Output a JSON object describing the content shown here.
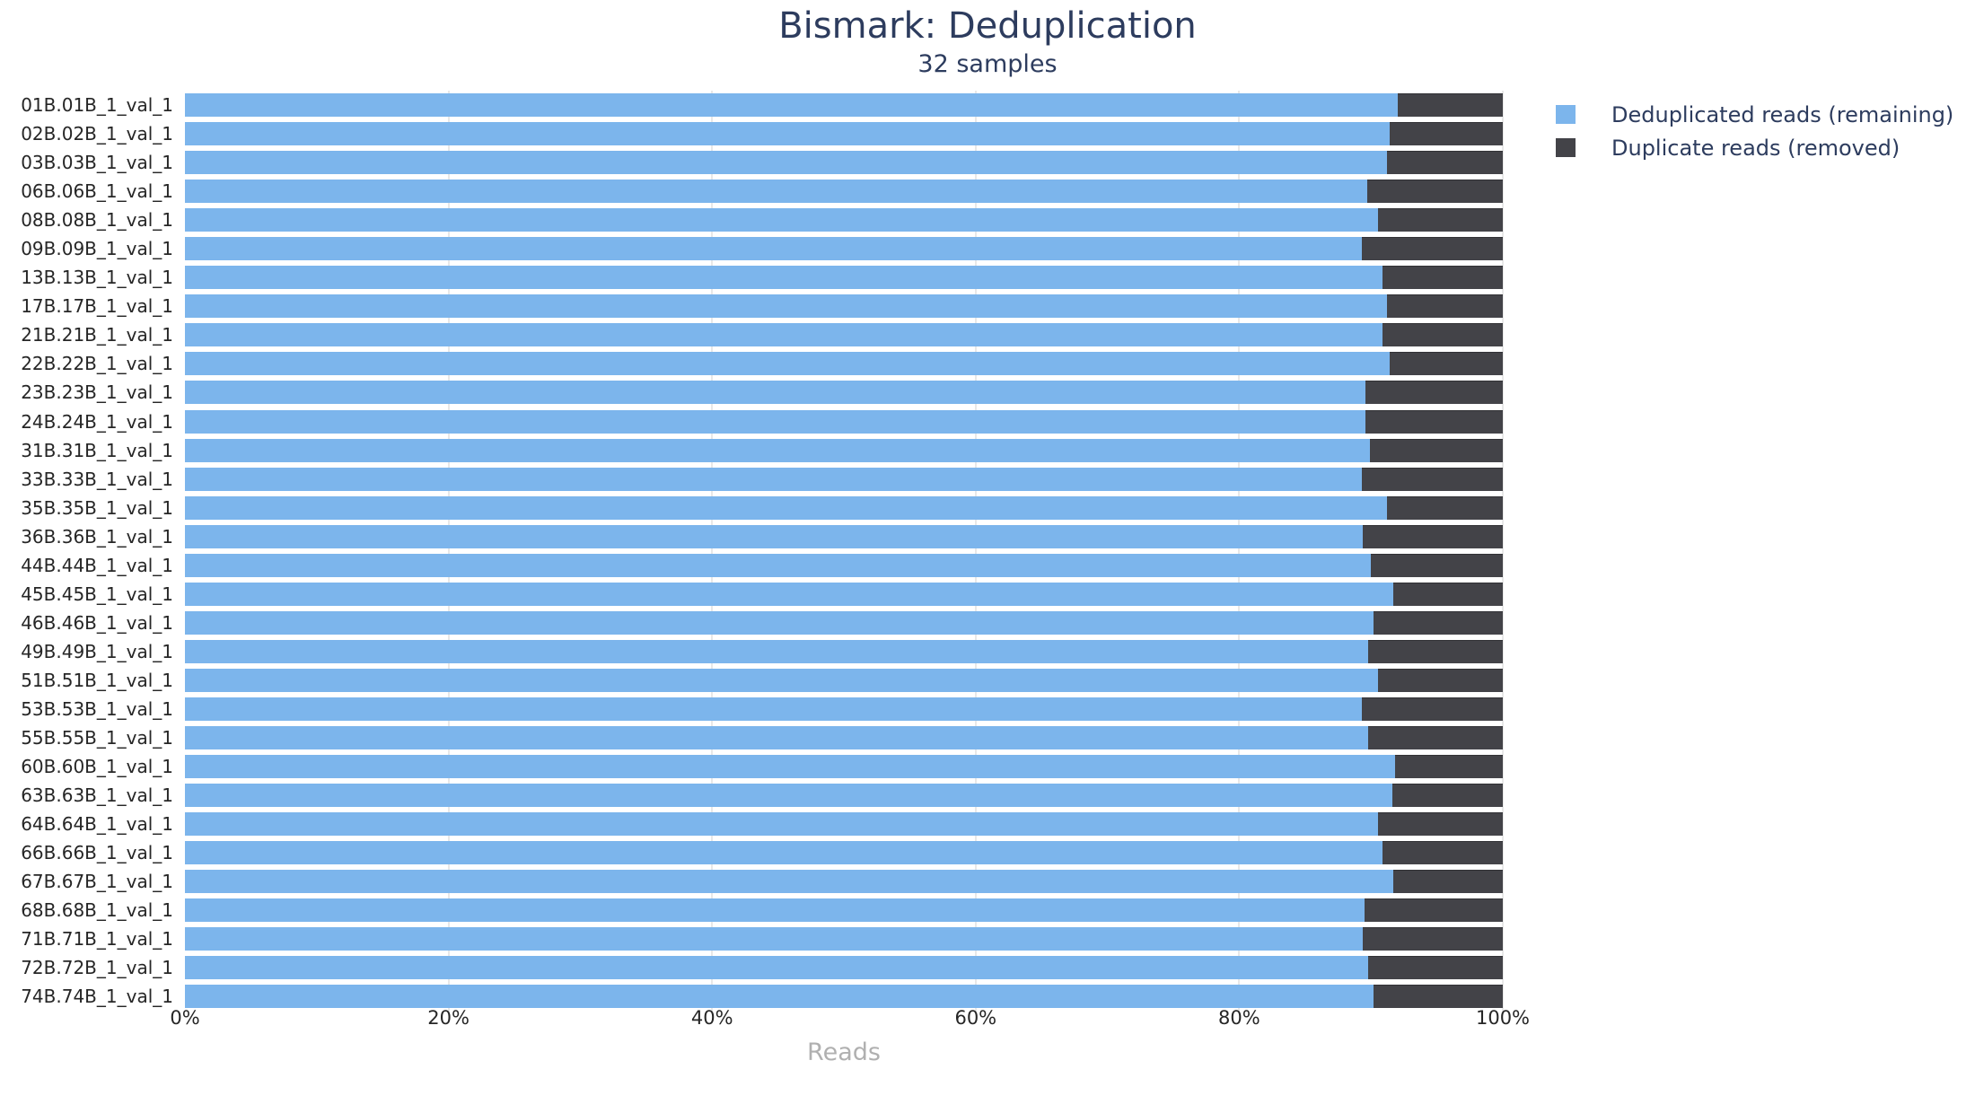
{
  "chart_data": {
    "type": "bar",
    "orientation": "horizontal",
    "stacked": true,
    "title": "Bismark: Deduplication",
    "subtitle": "32 samples",
    "xlabel": "Reads",
    "xlim": [
      0,
      100
    ],
    "x_ticks": [
      "0%",
      "20%",
      "40%",
      "60%",
      "80%",
      "100%"
    ],
    "x_tick_values": [
      0,
      20,
      40,
      60,
      80,
      100
    ],
    "grid": "vertical",
    "gridline_values": [
      20,
      40,
      60,
      80,
      100
    ],
    "legend_position": "right",
    "categories": [
      "01B.01B_1_val_1",
      "02B.02B_1_val_1",
      "03B.03B_1_val_1",
      "06B.06B_1_val_1",
      "08B.08B_1_val_1",
      "09B.09B_1_val_1",
      "13B.13B_1_val_1",
      "17B.17B_1_val_1",
      "21B.21B_1_val_1",
      "22B.22B_1_val_1",
      "23B.23B_1_val_1",
      "24B.24B_1_val_1",
      "31B.31B_1_val_1",
      "33B.33B_1_val_1",
      "35B.35B_1_val_1",
      "36B.36B_1_val_1",
      "44B.44B_1_val_1",
      "45B.45B_1_val_1",
      "46B.46B_1_val_1",
      "49B.49B_1_val_1",
      "51B.51B_1_val_1",
      "53B.53B_1_val_1",
      "55B.55B_1_val_1",
      "60B.60B_1_val_1",
      "63B.63B_1_val_1",
      "64B.64B_1_val_1",
      "66B.66B_1_val_1",
      "67B.67B_1_val_1",
      "68B.68B_1_val_1",
      "71B.71B_1_val_1",
      "72B.72B_1_val_1",
      "74B.74B_1_val_1"
    ],
    "series": [
      {
        "name": "Deduplicated reads (remaining)",
        "color": "#7cb5ec",
        "values": [
          92.0,
          91.4,
          91.2,
          89.7,
          90.5,
          89.3,
          90.9,
          91.2,
          90.9,
          91.4,
          89.6,
          89.6,
          89.9,
          89.3,
          91.2,
          89.4,
          90.0,
          91.7,
          90.2,
          89.8,
          90.5,
          89.3,
          89.8,
          91.8,
          91.6,
          90.5,
          90.9,
          91.7,
          89.5,
          89.4,
          89.8,
          90.2
        ]
      },
      {
        "name": "Duplicate reads (removed)",
        "color": "#434348",
        "values": [
          8.0,
          8.6,
          8.8,
          10.3,
          9.5,
          10.7,
          9.1,
          8.8,
          9.1,
          8.6,
          10.4,
          10.4,
          10.1,
          10.7,
          8.8,
          10.6,
          10.0,
          8.3,
          9.8,
          10.2,
          9.5,
          10.7,
          10.2,
          8.2,
          8.4,
          9.5,
          9.1,
          8.3,
          10.5,
          10.6,
          10.2,
          9.8
        ]
      }
    ]
  }
}
